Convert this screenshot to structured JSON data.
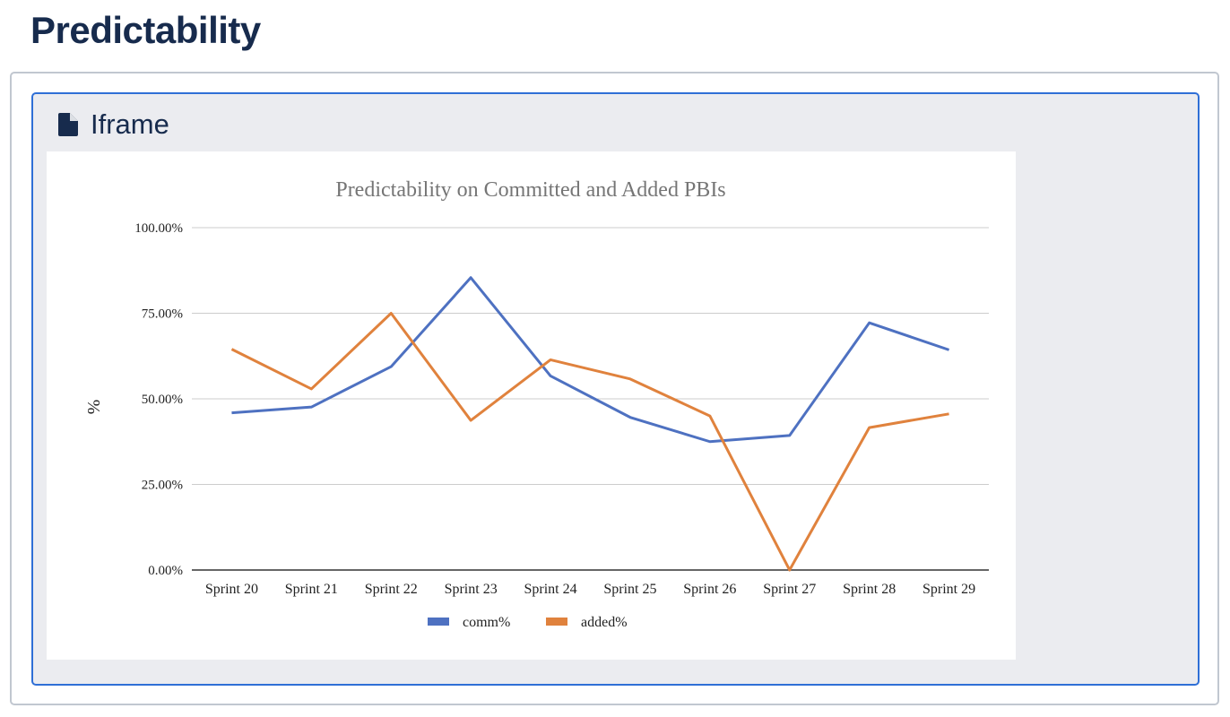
{
  "page": {
    "title": "Predictability"
  },
  "macro": {
    "title": "Iframe",
    "icon": "document-icon"
  },
  "chart_data": {
    "type": "line",
    "title": "Predictability on Committed and Added PBIs",
    "xlabel": "",
    "ylabel": "%",
    "categories": [
      "Sprint 20",
      "Sprint 21",
      "Sprint 22",
      "Sprint 23",
      "Sprint 24",
      "Sprint 25",
      "Sprint 26",
      "Sprint 27",
      "Sprint 28",
      "Sprint 29"
    ],
    "y_ticks": [
      "0.00%",
      "25.00%",
      "50.00%",
      "75.00%",
      "100.00%"
    ],
    "ylim": [
      0,
      100
    ],
    "grid": true,
    "legend_position": "bottom",
    "series": [
      {
        "name": "comm%",
        "color": "#4e71c1",
        "values": [
          45.9,
          47.6,
          59.4,
          85.4,
          56.7,
          44.6,
          37.5,
          39.3,
          72.2,
          64.3
        ]
      },
      {
        "name": "added%",
        "color": "#e0823d",
        "values": [
          64.5,
          52.9,
          75.0,
          43.7,
          61.4,
          55.8,
          45.0,
          0.0,
          41.6,
          45.6
        ]
      }
    ]
  }
}
